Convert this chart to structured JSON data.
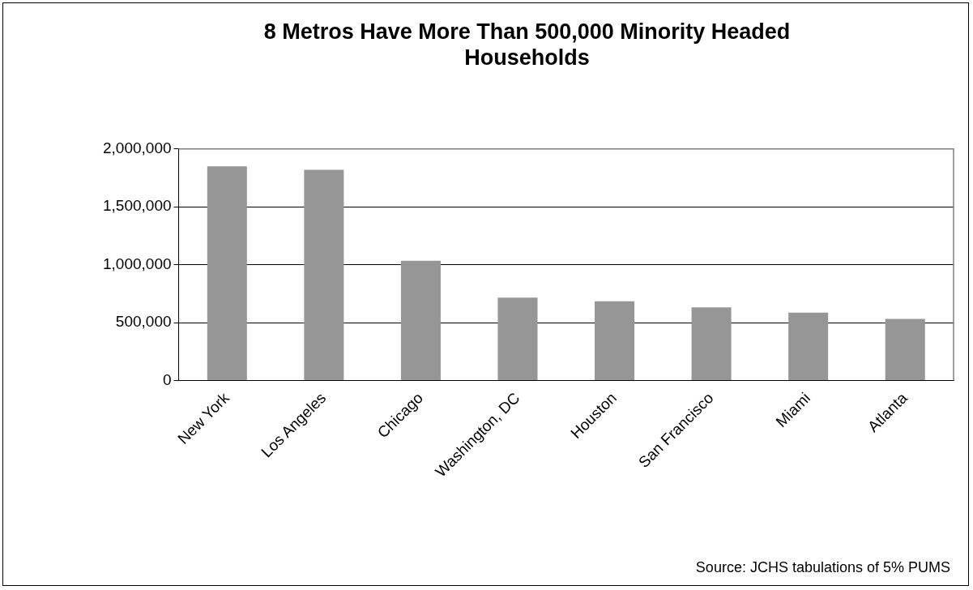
{
  "chart_data": {
    "type": "bar",
    "title": "8 Metros Have More Than 500,000 Minority Headed Households",
    "categories": [
      "New York",
      "Los Angeles",
      "Chicago",
      "Washington, DC",
      "Houston",
      "San Francisco",
      "Miami",
      "Atlanta"
    ],
    "values": [
      1850000,
      1820000,
      1035000,
      716000,
      685000,
      632000,
      586000,
      533000
    ],
    "color": "#969696",
    "ylim": [
      0,
      2000000
    ],
    "yticks": [
      0,
      {
        "value": 500000,
        "label": "500,000"
      },
      {
        "value": 1000000,
        "label": "1,000,000"
      },
      {
        "value": 1500000,
        "label": "1,500,000"
      },
      {
        "value": 2000000,
        "label": "2,000,000"
      }
    ],
    "grid": "y",
    "legend": false,
    "annotations": [
      "Source: JCHS tabulations of 5% PUMS"
    ]
  }
}
